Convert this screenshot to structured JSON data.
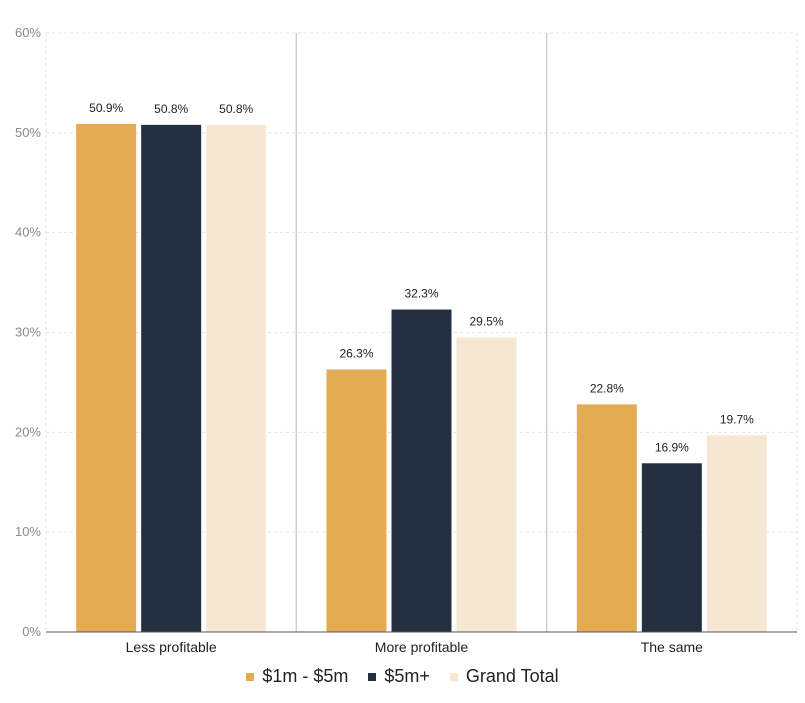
{
  "chart_data": {
    "type": "bar",
    "categories": [
      "Less profitable",
      "More profitable",
      "The same"
    ],
    "series": [
      {
        "name": "$1m - $5m",
        "color": "#e3ab52",
        "values": [
          50.9,
          26.3,
          22.8
        ],
        "labels": [
          "50.9%",
          "26.3%",
          "22.8%"
        ]
      },
      {
        "name": "$5m+",
        "color": "#233040",
        "values": [
          50.8,
          32.3,
          16.9
        ],
        "labels": [
          "50.8%",
          "32.3%",
          "16.9%"
        ]
      },
      {
        "name": "Grand Total",
        "color": "#f6e7d2",
        "values": [
          50.8,
          29.5,
          19.7
        ],
        "labels": [
          "50.8%",
          "29.5%",
          "19.7%"
        ]
      }
    ],
    "ylim": [
      0,
      60
    ],
    "yticks": [
      0,
      10,
      20,
      30,
      40,
      50,
      60
    ],
    "ytick_labels": [
      "0%",
      "10%",
      "20%",
      "30%",
      "40%",
      "50%",
      "60%"
    ],
    "grid": true,
    "legend_position": "bottom"
  }
}
